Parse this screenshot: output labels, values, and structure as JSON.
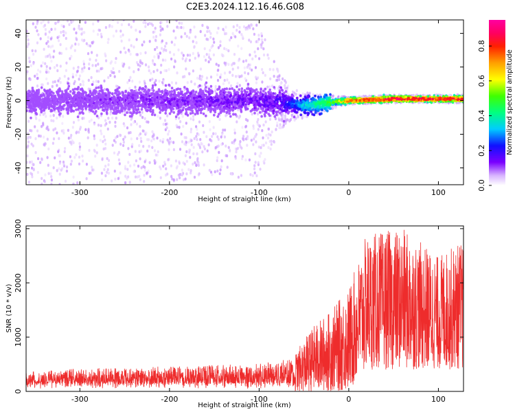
{
  "figure_title": "C2E3.2024.112.16.46.G08",
  "colors": {
    "snr_line": "#ee2c2c",
    "frame": "#000000",
    "background": "#ffffff"
  },
  "chart_data": [
    {
      "type": "heatmap",
      "xlabel": "Height of straight line (km)",
      "ylabel": "Frequency (Hz)",
      "xlim": [
        -360,
        128
      ],
      "ylim": [
        -50,
        48
      ],
      "xticks": [
        -300,
        -200,
        -100,
        0,
        100
      ],
      "yticks": [
        -40,
        -20,
        0,
        20,
        40
      ],
      "colorbar": {
        "label": "Normalized spectral amplitude",
        "range": [
          0,
          0.95
        ],
        "ticks": [
          "0.0",
          "0.2",
          "0.4",
          "0.6",
          "0.8"
        ],
        "tick_values": [
          0,
          0.2,
          0.4,
          0.6,
          0.8
        ],
        "colormap": "rainbow (white-purple-blue-cyan-green-yellow-orange-red-magenta)"
      },
      "description_points": [
        {
          "x": -360,
          "y_center": 0,
          "spread_hz": 50,
          "amp": 0.05
        },
        {
          "x": -300,
          "y_center": 0,
          "spread_hz": 50,
          "amp": 0.08
        },
        {
          "x": -200,
          "y_center": 0,
          "spread_hz": 48,
          "amp": 0.1
        },
        {
          "x": -100,
          "y_center": 0,
          "spread_hz": 45,
          "amp": 0.12
        },
        {
          "x": -75,
          "y_center": -1,
          "spread_hz": 15,
          "amp": 0.15
        },
        {
          "x": -50,
          "y_center": -3,
          "spread_hz": 10,
          "amp": 0.3
        },
        {
          "x": -20,
          "y_center": -1,
          "spread_hz": 5,
          "amp": 0.45
        },
        {
          "x": 0,
          "y_center": 0,
          "spread_hz": 3,
          "amp": 0.7
        },
        {
          "x": 50,
          "y_center": 1,
          "spread_hz": 3,
          "amp": 0.8
        },
        {
          "x": 128,
          "y_center": 1,
          "spread_hz": 3,
          "amp": 0.75
        }
      ]
    },
    {
      "type": "line",
      "xlabel": "Height of straight line (km)",
      "ylabel": "SNR (10 * v/v)",
      "xlim": [
        -360,
        128
      ],
      "ylim": [
        0,
        3050
      ],
      "xticks": [
        -300,
        -200,
        -100,
        0,
        100
      ],
      "yticks": [
        0,
        1000,
        2000,
        3000
      ],
      "envelope": [
        {
          "x": -360,
          "low": 0,
          "high": 400
        },
        {
          "x": -300,
          "low": 0,
          "high": 450
        },
        {
          "x": -200,
          "low": 0,
          "high": 500
        },
        {
          "x": -100,
          "low": 0,
          "high": 550
        },
        {
          "x": -60,
          "low": 0,
          "high": 700
        },
        {
          "x": -40,
          "low": 0,
          "high": 1200
        },
        {
          "x": -20,
          "low": 0,
          "high": 1500
        },
        {
          "x": 0,
          "low": 0,
          "high": 1900
        },
        {
          "x": 20,
          "low": 400,
          "high": 2900
        },
        {
          "x": 60,
          "low": 400,
          "high": 3000
        },
        {
          "x": 100,
          "low": 400,
          "high": 2500
        },
        {
          "x": 128,
          "low": 400,
          "high": 2800
        }
      ]
    }
  ]
}
